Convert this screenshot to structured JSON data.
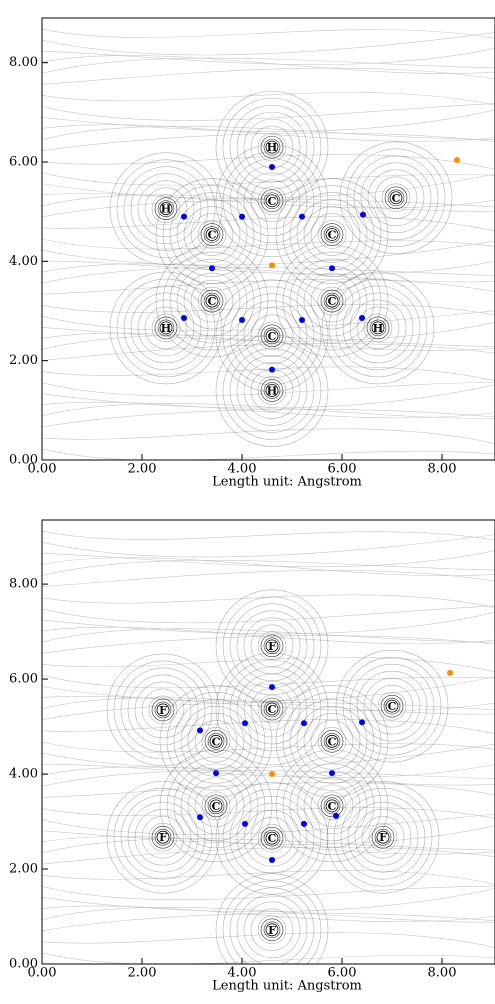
{
  "chart_data": [
    {
      "type": "contour",
      "xlabel": "Length unit: Angstrom",
      "xlim": [
        0,
        9
      ],
      "ylim": [
        0,
        8.9
      ],
      "xticks": [
        {
          "value": 0,
          "label": "0.00"
        },
        {
          "value": 2,
          "label": "2.00"
        },
        {
          "value": 4,
          "label": "4.00"
        },
        {
          "value": 6,
          "label": "6.00"
        },
        {
          "value": 8,
          "label": "8.00"
        }
      ],
      "yticks": [
        {
          "value": 0,
          "label": "0.00"
        },
        {
          "value": 2,
          "label": "2.00"
        },
        {
          "value": 4,
          "label": "4.00"
        },
        {
          "value": 6,
          "label": "6.00"
        },
        {
          "value": 8,
          "label": "8.00"
        }
      ],
      "atoms": {
        "labels": [
          "H",
          "C",
          "H",
          "C",
          "C",
          "C",
          "C",
          "C",
          "H",
          "H",
          "C",
          "H"
        ],
        "x": [
          4.6,
          4.6,
          2.48,
          3.4,
          5.8,
          7.08,
          3.4,
          5.8,
          2.48,
          6.72,
          4.6,
          4.6
        ],
        "values": [
          6.3,
          5.22,
          5.06,
          4.54,
          4.54,
          5.28,
          3.2,
          3.2,
          2.66,
          2.66,
          2.5,
          1.4
        ]
      },
      "series": [
        {
          "color": "#0000ff",
          "x": [
            4.6,
            2.84,
            4.0,
            5.2,
            6.42,
            3.4,
            5.8,
            2.84,
            4.0,
            5.2,
            6.4,
            4.6
          ],
          "values": [
            5.9,
            4.9,
            4.9,
            4.9,
            4.94,
            3.86,
            3.86,
            2.86,
            2.82,
            2.82,
            2.86,
            1.82
          ]
        },
        {
          "color": "#ff8c00",
          "x": [
            4.6,
            8.3
          ],
          "values": [
            3.92,
            6.04
          ]
        }
      ]
    },
    {
      "type": "contour",
      "xlabel": "Length unit: Angstrom",
      "xlim": [
        0,
        9
      ],
      "ylim": [
        0,
        9.35
      ],
      "xticks": [
        {
          "value": 0,
          "label": "0.00"
        },
        {
          "value": 2,
          "label": "2.00"
        },
        {
          "value": 4,
          "label": "4.00"
        },
        {
          "value": 6,
          "label": "6.00"
        },
        {
          "value": 8,
          "label": "8.00"
        }
      ],
      "yticks": [
        {
          "value": 0,
          "label": "0.00"
        },
        {
          "value": 2,
          "label": "2.00"
        },
        {
          "value": 4,
          "label": "4.00"
        },
        {
          "value": 6,
          "label": "6.00"
        },
        {
          "value": 8,
          "label": "8.00"
        }
      ],
      "atoms": {
        "labels": [
          "F",
          "C",
          "F",
          "C",
          "C",
          "C",
          "C",
          "C",
          "C",
          "F",
          "F",
          "F"
        ],
        "x": [
          4.6,
          4.6,
          2.42,
          3.48,
          5.8,
          7.0,
          3.48,
          5.8,
          4.6,
          2.42,
          6.82,
          4.6
        ],
        "values": [
          6.7,
          5.37,
          5.35,
          4.69,
          4.69,
          5.43,
          3.33,
          3.33,
          2.65,
          2.67,
          2.67,
          0.72
        ]
      },
      "series": [
        {
          "color": "#0000ff",
          "x": [
            4.6,
            3.16,
            4.06,
            5.24,
            6.4,
            3.48,
            5.8,
            3.16,
            4.06,
            5.24,
            5.88,
            4.6
          ],
          "values": [
            5.83,
            4.92,
            5.07,
            5.07,
            5.09,
            4.02,
            4.02,
            3.09,
            2.95,
            2.95,
            3.12,
            2.19
          ]
        },
        {
          "color": "#ff8c00",
          "x": [
            4.6,
            8.16
          ],
          "values": [
            4.0,
            6.13
          ]
        }
      ]
    }
  ]
}
